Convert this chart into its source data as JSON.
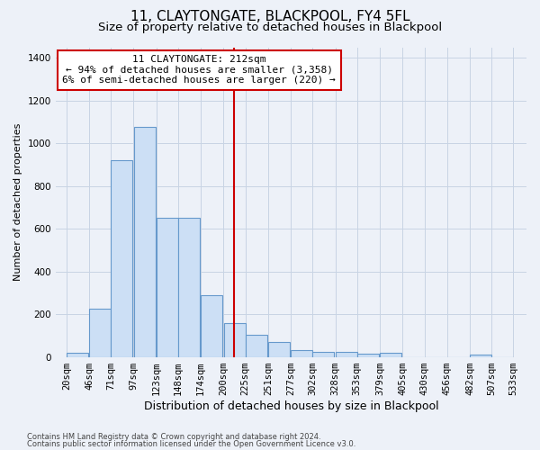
{
  "title": "11, CLAYTONGATE, BLACKPOOL, FY4 5FL",
  "subtitle": "Size of property relative to detached houses in Blackpool",
  "xlabel": "Distribution of detached houses by size in Blackpool",
  "ylabel": "Number of detached properties",
  "bar_color": "#ccdff5",
  "bar_edge_color": "#6699cc",
  "bin_left_edges": [
    20,
    46,
    71,
    97,
    123,
    148,
    174,
    200,
    225,
    251,
    277,
    302,
    328,
    353,
    379,
    405,
    430,
    456,
    482,
    507
  ],
  "bin_labels": [
    "20sqm",
    "46sqm",
    "71sqm",
    "97sqm",
    "123sqm",
    "148sqm",
    "174sqm",
    "200sqm",
    "225sqm",
    "251sqm",
    "277sqm",
    "302sqm",
    "328sqm",
    "353sqm",
    "379sqm",
    "405sqm",
    "430sqm",
    "456sqm",
    "482sqm",
    "507sqm",
    "533sqm"
  ],
  "bar_heights": [
    20,
    225,
    920,
    1075,
    650,
    650,
    290,
    160,
    105,
    70,
    30,
    25,
    25,
    15,
    20,
    0,
    0,
    0,
    10,
    0
  ],
  "bin_width": 25,
  "property_size": 212,
  "vline_color": "#cc0000",
  "annotation_line1": "11 CLAYTONGATE: 212sqm",
  "annotation_line2": "← 94% of detached houses are smaller (3,358)",
  "annotation_line3": "6% of semi-detached houses are larger (220) →",
  "annotation_box_facecolor": "#ffffff",
  "annotation_box_edgecolor": "#cc0000",
  "ylim": [
    0,
    1450
  ],
  "yticks": [
    0,
    200,
    400,
    600,
    800,
    1000,
    1200,
    1400
  ],
  "grid_color": "#c8d4e4",
  "bg_color": "#edf1f8",
  "footer_line1": "Contains HM Land Registry data © Crown copyright and database right 2024.",
  "footer_line2": "Contains public sector information licensed under the Open Government Licence v3.0.",
  "title_fontsize": 11,
  "subtitle_fontsize": 9.5,
  "xlabel_fontsize": 9,
  "ylabel_fontsize": 8,
  "tick_fontsize": 7.5,
  "annotation_fontsize": 8,
  "footer_fontsize": 6
}
